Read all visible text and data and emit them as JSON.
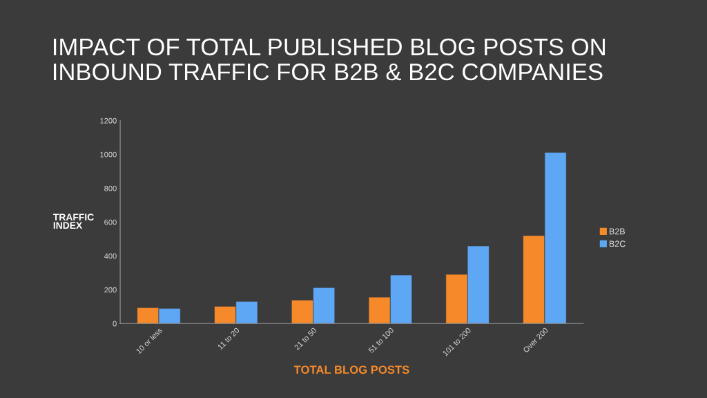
{
  "chart_data": {
    "type": "bar",
    "title": "IMPACT OF TOTAL PUBLISHED BLOG POSTS ON INBOUND TRAFFIC FOR B2B & B2C COMPANIES",
    "xlabel": "TOTAL BLOG POSTS",
    "ylabel": "TRAFFIC\nINDEX",
    "categories": [
      "10 or less",
      "11 to 20",
      "21 to 50",
      "51 to 100",
      "101 to 200",
      "Over 200"
    ],
    "series": [
      {
        "name": "B2B",
        "color": "#f68a2a",
        "values": [
          94,
          102,
          139,
          156,
          291,
          520
        ]
      },
      {
        "name": "B2C",
        "color": "#5ea7f5",
        "values": [
          90,
          131,
          213,
          287,
          459,
          1012
        ]
      }
    ],
    "ylim": [
      0,
      1200
    ],
    "yticks": [
      0,
      200,
      400,
      600,
      800,
      1000,
      1200
    ],
    "grid": false,
    "legend": "right"
  }
}
